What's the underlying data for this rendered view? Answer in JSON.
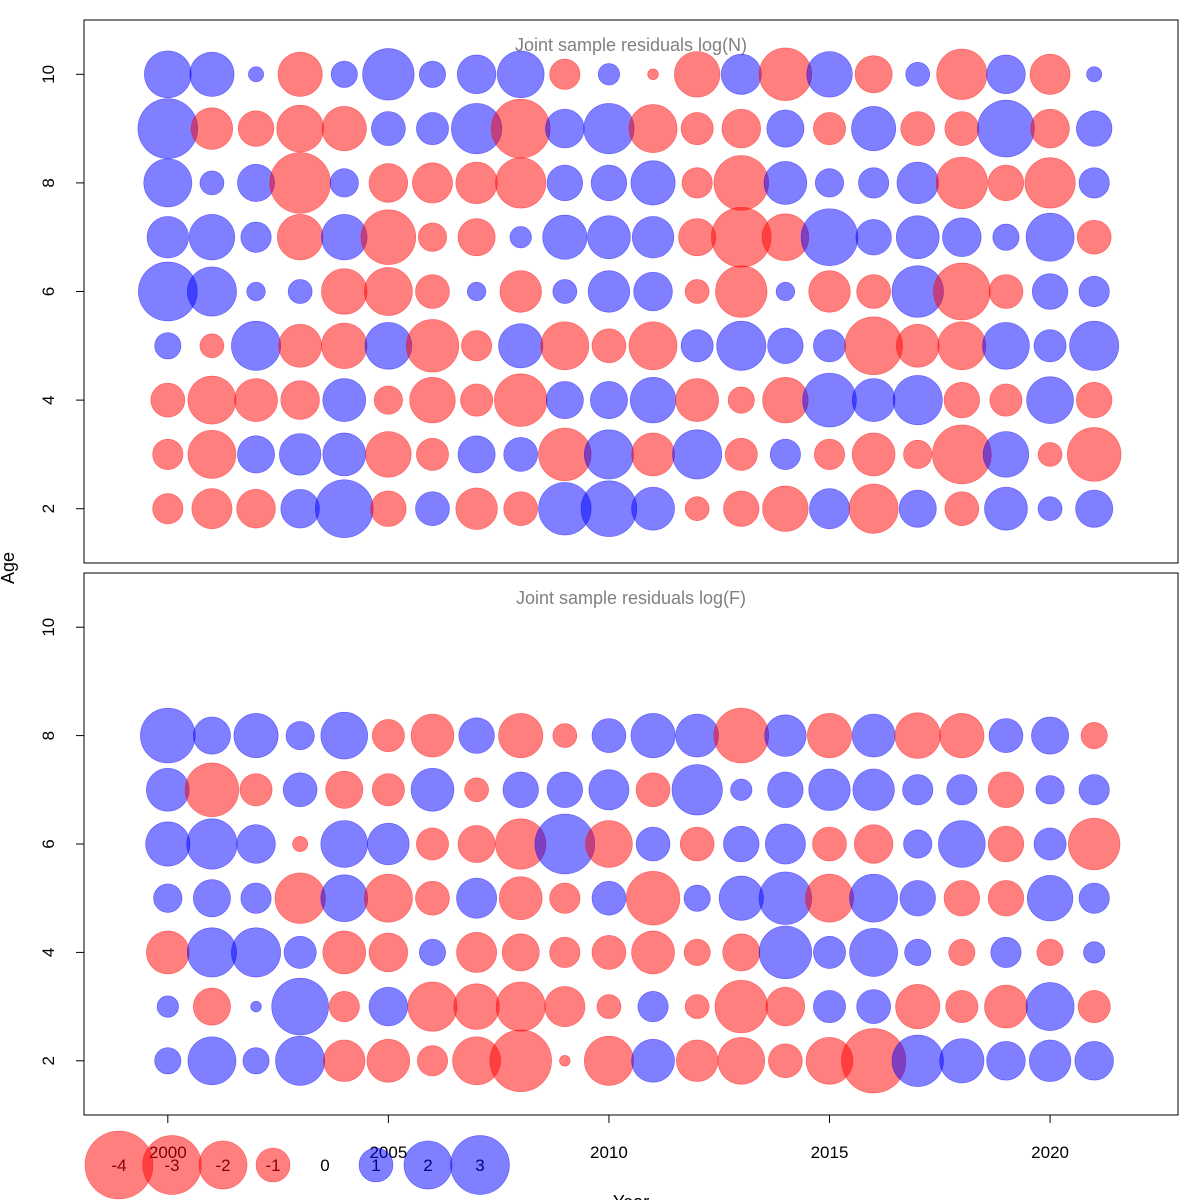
{
  "chart_data": {
    "type": "scatter",
    "subtype": "bubble",
    "xlabel": "Year",
    "ylabel": "Age",
    "colors": {
      "positive": "#0000ff",
      "negative": "#ff0000",
      "opacity": 0.5
    },
    "years": [
      2000,
      2001,
      2002,
      2003,
      2004,
      2005,
      2006,
      2007,
      2008,
      2009,
      2010,
      2011,
      2012,
      2013,
      2014,
      2015,
      2016,
      2017,
      2018,
      2019,
      2020,
      2021
    ],
    "x_ticks": [
      2000,
      2005,
      2010,
      2015,
      2020
    ],
    "panels": [
      {
        "title": "Joint sample residuals log(N)",
        "ylim": [
          1,
          11
        ],
        "y_ticks": [
          2,
          4,
          6,
          8,
          10
        ],
        "ages": [
          2,
          3,
          4,
          5,
          6,
          7,
          8,
          9,
          10
        ],
        "residuals": [
          [
            -0.8,
            -1.4,
            -1.3,
            1.3,
            2.9,
            -1.1,
            1.0,
            -1.5,
            -1.0,
            2.4,
            2.7,
            1.6,
            -0.5,
            -1.1,
            -1.8,
            1.4,
            -2.1,
            1.2,
            -1.0,
            1.6,
            0.5,
            1.2
          ],
          [
            -0.8,
            -2.0,
            1.2,
            1.5,
            1.6,
            -1.8,
            -0.9,
            1.2,
            1.0,
            -2.4,
            2.1,
            -1.6,
            2.1,
            -0.9,
            0.8,
            -0.8,
            -1.6,
            -0.7,
            -3.0,
            1.8,
            -0.5,
            -2.5
          ],
          [
            -1.0,
            -2.0,
            -1.6,
            -1.3,
            1.6,
            -0.7,
            -1.8,
            -0.9,
            -2.4,
            1.2,
            1.2,
            1.8,
            -1.6,
            -0.6,
            -1.8,
            2.5,
            1.6,
            2.1,
            -1.1,
            -0.9,
            1.9,
            -1.1
          ],
          [
            0.6,
            -0.5,
            2.1,
            -1.6,
            -1.8,
            1.9,
            -2.4,
            -0.8,
            1.7,
            -2.0,
            -1.0,
            -2.0,
            0.9,
            2.1,
            1.1,
            0.9,
            -2.9,
            -1.6,
            -2.0,
            1.9,
            0.9,
            2.1
          ],
          [
            3.0,
            2.1,
            0.3,
            0.5,
            -1.8,
            -2.0,
            -1.0,
            0.3,
            -1.5,
            0.5,
            1.5,
            1.3,
            -0.5,
            -2.3,
            0.3,
            -1.5,
            -1.0,
            2.3,
            -2.8,
            -1.0,
            1.1,
            0.8
          ],
          [
            1.5,
            1.8,
            0.8,
            -1.8,
            1.8,
            -2.6,
            -0.7,
            -1.2,
            0.4,
            1.7,
            1.6,
            1.5,
            -1.2,
            -3.1,
            -1.9,
            2.8,
            1.1,
            1.6,
            1.3,
            0.6,
            2.0,
            -1.0
          ],
          [
            2.0,
            0.5,
            1.2,
            -3.2,
            0.7,
            -1.3,
            -1.4,
            -1.5,
            -2.2,
            1.1,
            1.1,
            1.7,
            -0.8,
            -2.6,
            1.6,
            0.7,
            0.8,
            1.5,
            -2.3,
            -1.1,
            -2.2,
            0.8
          ],
          [
            3.1,
            -1.5,
            -1.1,
            -1.9,
            -1.7,
            1.0,
            0.9,
            2.2,
            -3.0,
            1.3,
            2.2,
            -2.0,
            -0.9,
            -1.3,
            1.2,
            -0.9,
            1.7,
            -1.0,
            -1.0,
            2.8,
            -1.3,
            1.1
          ],
          [
            1.9,
            1.7,
            0.2,
            -1.7,
            0.6,
            2.3,
            0.6,
            1.3,
            1.9,
            -0.8,
            0.4,
            -0.1,
            -1.8,
            1.4,
            -2.4,
            1.8,
            -1.2,
            0.5,
            -2.2,
            1.3,
            -1.4,
            0.2
          ]
        ]
      },
      {
        "title": "Joint sample residuals log(F)",
        "ylim": [
          1,
          11
        ],
        "y_ticks": [
          2,
          4,
          6,
          8,
          10
        ],
        "ages": [
          2,
          3,
          4,
          5,
          6,
          7,
          8
        ],
        "residuals": [
          [
            0.6,
            2.0,
            0.6,
            2.1,
            -1.5,
            -1.6,
            -0.8,
            -2.0,
            -3.3,
            -0.1,
            -2.1,
            1.6,
            -1.5,
            -1.9,
            -1.0,
            -1.9,
            -3.6,
            2.3,
            1.7,
            1.3,
            1.5,
            1.3
          ],
          [
            0.4,
            -1.2,
            0.1,
            2.8,
            -0.8,
            1.3,
            -2.1,
            -1.8,
            -2.1,
            -1.4,
            -0.5,
            0.8,
            -0.5,
            -2.4,
            -1.3,
            0.9,
            1.0,
            -1.7,
            -0.9,
            -1.6,
            2.0,
            -0.9
          ],
          [
            -1.6,
            2.1,
            2.1,
            0.9,
            -1.6,
            -1.3,
            0.6,
            -1.4,
            -1.2,
            -0.8,
            -1.0,
            -1.6,
            -0.6,
            -1.2,
            2.4,
            0.9,
            2.0,
            0.6,
            -0.6,
            0.8,
            -0.6,
            0.4
          ],
          [
            0.7,
            1.2,
            0.8,
            -2.2,
            1.9,
            -2.0,
            -1.0,
            1.4,
            -1.6,
            -0.8,
            1.0,
            -2.5,
            0.6,
            1.7,
            2.4,
            -2.0,
            2.0,
            1.1,
            -1.1,
            -1.1,
            1.8,
            0.8
          ],
          [
            1.7,
            2.2,
            1.3,
            -0.2,
            1.9,
            1.5,
            -0.9,
            -1.2,
            -2.2,
            3.1,
            -1.9,
            1.0,
            -1.0,
            1.1,
            1.4,
            -1.0,
            -1.3,
            0.7,
            1.9,
            -1.1,
            0.9,
            -2.3
          ],
          [
            1.6,
            -2.5,
            -0.9,
            1.0,
            -1.2,
            -0.9,
            1.6,
            -0.5,
            1.1,
            1.1,
            1.4,
            -1.0,
            2.2,
            0.4,
            1.1,
            1.5,
            1.5,
            0.8,
            0.8,
            -1.1,
            0.7,
            0.8
          ],
          [
            2.6,
            1.2,
            1.7,
            0.7,
            1.9,
            -0.9,
            -1.6,
            1.1,
            -1.7,
            -0.5,
            1.0,
            1.7,
            1.6,
            -2.6,
            1.5,
            -1.7,
            1.6,
            -1.8,
            -1.7,
            1.0,
            1.2,
            -0.6
          ]
        ]
      }
    ],
    "legend": {
      "labels": [
        "-4",
        "-3",
        "-2",
        "-1",
        "0",
        "1",
        "2",
        "3"
      ],
      "values": [
        -4,
        -3,
        -2,
        -1,
        0,
        1,
        2,
        3
      ],
      "placement": "bottom-left"
    }
  }
}
